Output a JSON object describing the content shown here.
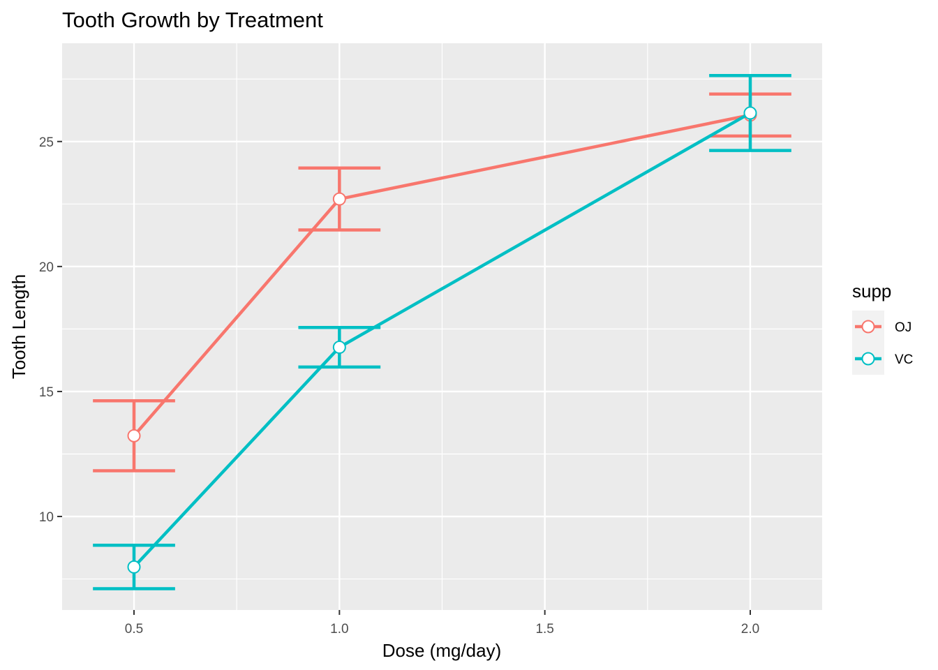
{
  "chart_data": {
    "type": "line",
    "title": "Tooth Growth by Treatment",
    "xlabel": "Dose (mg/day)",
    "ylabel": "Tooth Length",
    "xlim": [
      0.325,
      2.175
    ],
    "ylim": [
      6.26,
      28.93
    ],
    "x_ticks": [
      0.5,
      1.0,
      1.5,
      2.0
    ],
    "x_tick_labels": [
      "0.5",
      "1.0",
      "1.5",
      "2.0"
    ],
    "y_ticks": [
      10,
      15,
      20,
      25
    ],
    "y_tick_labels": [
      "10",
      "15",
      "20",
      "25"
    ],
    "grid": true,
    "legend": {
      "title": "supp",
      "placement": "right"
    },
    "series": [
      {
        "name": "OJ",
        "color": "#F8766D",
        "x": [
          0.5,
          1.0,
          2.0
        ],
        "y": [
          13.23,
          22.7,
          26.06
        ],
        "ymin": [
          11.83,
          21.46,
          25.22
        ],
        "ymax": [
          14.63,
          23.94,
          26.9
        ]
      },
      {
        "name": "VC",
        "color": "#00BFC4",
        "x": [
          0.5,
          1.0,
          2.0
        ],
        "y": [
          7.98,
          16.77,
          26.14
        ],
        "ymin": [
          7.11,
          15.98,
          24.64
        ],
        "ymax": [
          8.85,
          17.56,
          27.64
        ]
      }
    ]
  }
}
